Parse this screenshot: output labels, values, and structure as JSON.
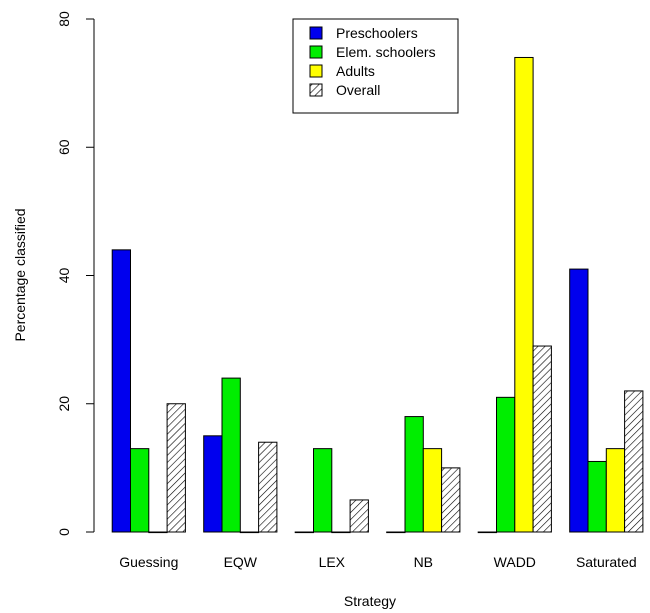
{
  "chart_data": {
    "type": "bar",
    "title": "",
    "xlabel": "Strategy",
    "ylabel": "Percentage classified",
    "ylim": [
      0,
      80
    ],
    "yticks": [
      0,
      20,
      40,
      60,
      80
    ],
    "categories": [
      "Guessing",
      "EQW",
      "LEX",
      "NB",
      "WADD",
      "Saturated"
    ],
    "series": [
      {
        "name": "Preschoolers",
        "color": "#0000ee",
        "hatch": false,
        "values": [
          44,
          15,
          0,
          0,
          0,
          41
        ]
      },
      {
        "name": "Elem. schoolers",
        "color": "#00ee00",
        "hatch": false,
        "values": [
          13,
          24,
          13,
          18,
          21,
          11
        ]
      },
      {
        "name": "Adults",
        "color": "#ffff00",
        "hatch": false,
        "values": [
          0,
          0,
          0,
          13,
          74,
          13
        ]
      },
      {
        "name": "Overall",
        "color": "#ffffff",
        "hatch": true,
        "values": [
          20,
          14,
          5,
          10,
          29,
          22
        ]
      }
    ],
    "legend": {
      "position": "top-center"
    },
    "grid": false
  }
}
